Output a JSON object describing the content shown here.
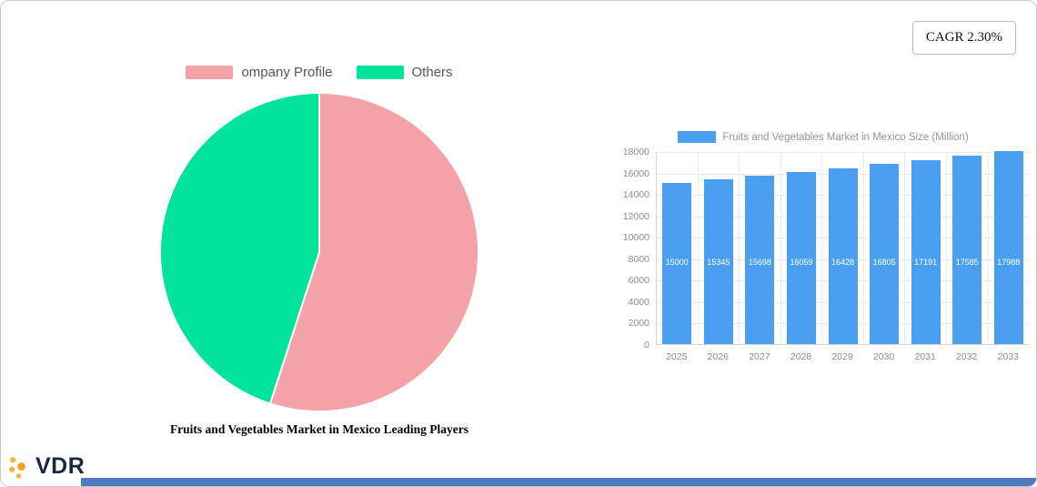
{
  "cagr": {
    "label": "CAGR 2.30%"
  },
  "logo": {
    "text": "VDR"
  },
  "chart_data": [
    {
      "type": "pie",
      "title": "Fruits and Vegetables Market in Mexico Leading Players",
      "labels": [
        "ompany Profile",
        "Others"
      ],
      "values": [
        55,
        45
      ],
      "colors": [
        "#f4a1a8",
        "#00e39b"
      ],
      "legend_position": "top"
    },
    {
      "type": "bar",
      "legend_label": "Fruits and Vegetables Market in Mexico Size (Million)",
      "categories": [
        "2025",
        "2026",
        "2027",
        "2028",
        "2029",
        "2030",
        "2031",
        "2032",
        "2033"
      ],
      "values": [
        15000,
        15345,
        15698,
        16059,
        16428,
        16805,
        17191,
        17585,
        17988
      ],
      "ylim": [
        0,
        18000
      ],
      "yticks": [
        0,
        2000,
        4000,
        6000,
        8000,
        10000,
        12000,
        14000,
        16000,
        18000
      ],
      "bar_color": "#4a9ff0",
      "grid": true,
      "legend_position": "top"
    }
  ]
}
